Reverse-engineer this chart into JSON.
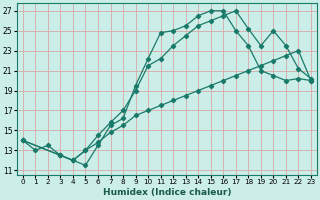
{
  "xlabel": "Humidex (Indice chaleur)",
  "bg_color": "#cceee8",
  "grid_color": "#d8a8a8",
  "line_color": "#1a7a6a",
  "xlim": [
    -0.5,
    23.5
  ],
  "ylim": [
    10.5,
    27.8
  ],
  "yticks": [
    11,
    13,
    15,
    17,
    19,
    21,
    23,
    25,
    27
  ],
  "xticks": [
    0,
    1,
    2,
    3,
    4,
    5,
    6,
    7,
    8,
    9,
    10,
    11,
    12,
    13,
    14,
    15,
    16,
    17,
    18,
    19,
    20,
    21,
    22,
    23
  ],
  "line1_x": [
    0,
    1,
    2,
    3,
    4,
    5,
    6,
    7,
    8,
    9,
    10,
    11,
    12,
    13,
    14,
    15,
    16,
    17,
    18,
    19,
    20,
    21,
    22,
    23
  ],
  "line1_y": [
    14,
    13,
    13.5,
    12.5,
    12,
    11.5,
    13.5,
    15.5,
    16.2,
    19.5,
    22.2,
    24.8,
    25.0,
    25.5,
    26.5,
    27.0,
    27.0,
    25.0,
    23.5,
    21.0,
    20.5,
    20.0,
    20.2,
    20.0
  ],
  "line2_x": [
    0,
    3,
    4,
    5,
    6,
    7,
    8,
    9,
    10,
    11,
    12,
    13,
    14,
    15,
    16,
    17,
    18,
    19,
    20,
    21,
    22,
    23
  ],
  "line2_y": [
    14,
    12.5,
    12,
    13,
    14.5,
    15.8,
    17,
    19,
    21.5,
    22.2,
    23.5,
    24.5,
    25.5,
    26.0,
    26.5,
    27.0,
    25.2,
    23.5,
    25.0,
    23.5,
    21.2,
    20.2
  ],
  "line3_x": [
    0,
    3,
    4,
    5,
    6,
    7,
    8,
    9,
    10,
    11,
    12,
    13,
    14,
    15,
    16,
    17,
    18,
    19,
    20,
    21,
    22,
    23
  ],
  "line3_y": [
    14,
    12.5,
    12,
    13,
    13.8,
    14.8,
    15.5,
    16.5,
    17.0,
    17.5,
    18.0,
    18.5,
    19.0,
    19.5,
    20.0,
    20.5,
    21.0,
    21.5,
    22.0,
    22.5,
    23.0,
    20.0
  ]
}
